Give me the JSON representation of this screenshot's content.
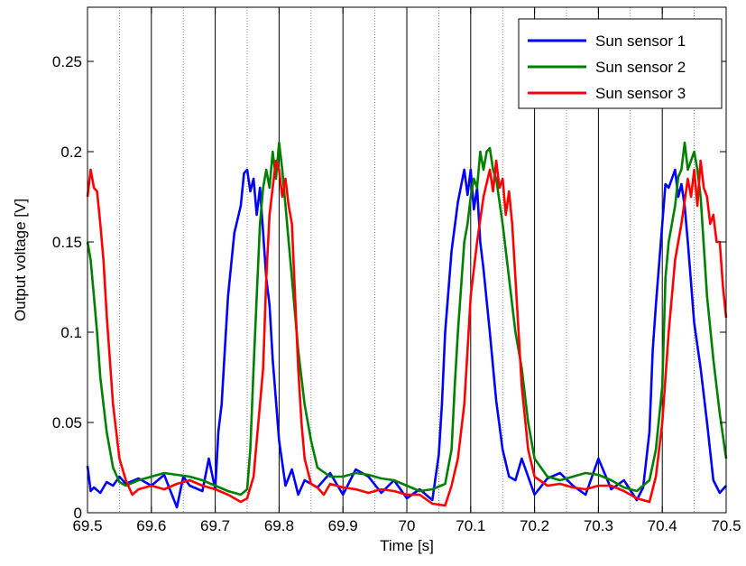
{
  "chart_data": {
    "type": "line",
    "title": "",
    "xlabel": "Time [s]",
    "ylabel": "Output voltage [V]",
    "xlim": [
      69.5,
      70.5
    ],
    "ylim": [
      0,
      0.28
    ],
    "x_ticks": [
      69.5,
      69.6,
      69.7,
      69.8,
      69.9,
      70.0,
      70.1,
      70.2,
      70.3,
      70.4,
      70.5
    ],
    "x_tick_labels": [
      "69.5",
      "69.6",
      "69.7",
      "69.8",
      "69.9",
      "70",
      "70.1",
      "70.2",
      "70.3",
      "70.4",
      "70.5"
    ],
    "y_ticks": [
      0,
      0.05,
      0.1,
      0.15,
      0.2,
      0.25
    ],
    "y_tick_labels": [
      "0",
      "0.05",
      "0.1",
      "0.15",
      "0.2",
      "0.25"
    ],
    "grid": "vertical lines only",
    "legend_position": "top-right",
    "series": [
      {
        "name": "Sun sensor 1",
        "color": "#0000ff",
        "x": [
          69.5,
          69.505,
          69.51,
          69.52,
          69.53,
          69.54,
          69.55,
          69.56,
          69.58,
          69.6,
          69.62,
          69.64,
          69.65,
          69.66,
          69.68,
          69.69,
          69.7,
          69.705,
          69.71,
          69.715,
          69.72,
          69.73,
          69.74,
          69.745,
          69.75,
          69.755,
          69.76,
          69.765,
          69.77,
          69.775,
          69.78,
          69.785,
          69.79,
          69.8,
          69.81,
          69.82,
          69.83,
          69.84,
          69.86,
          69.88,
          69.9,
          69.92,
          69.94,
          69.96,
          69.98,
          70.0,
          70.02,
          70.04,
          70.05,
          70.055,
          70.06,
          70.07,
          70.08,
          70.09,
          70.095,
          70.1,
          70.105,
          70.11,
          70.115,
          70.12,
          70.13,
          70.14,
          70.15,
          70.16,
          70.17,
          70.18,
          70.2,
          70.22,
          70.24,
          70.26,
          70.28,
          70.3,
          70.32,
          70.34,
          70.36,
          70.37,
          70.38,
          70.385,
          70.39,
          70.4,
          70.405,
          70.41,
          70.42,
          70.425,
          70.43,
          70.435,
          70.44,
          70.45,
          70.46,
          70.47,
          70.48,
          70.49,
          70.5
        ],
        "y": [
          0.026,
          0.012,
          0.014,
          0.011,
          0.017,
          0.015,
          0.02,
          0.016,
          0.019,
          0.015,
          0.021,
          0.003,
          0.02,
          0.015,
          0.012,
          0.03,
          0.013,
          0.045,
          0.06,
          0.09,
          0.12,
          0.155,
          0.17,
          0.188,
          0.19,
          0.178,
          0.185,
          0.165,
          0.18,
          0.155,
          0.13,
          0.115,
          0.085,
          0.04,
          0.015,
          0.024,
          0.01,
          0.018,
          0.014,
          0.022,
          0.01,
          0.024,
          0.02,
          0.011,
          0.018,
          0.008,
          0.013,
          0.007,
          0.032,
          0.06,
          0.1,
          0.145,
          0.172,
          0.19,
          0.176,
          0.19,
          0.168,
          0.18,
          0.15,
          0.135,
          0.1,
          0.062,
          0.035,
          0.02,
          0.018,
          0.03,
          0.01,
          0.019,
          0.022,
          0.015,
          0.01,
          0.03,
          0.013,
          0.018,
          0.007,
          0.014,
          0.045,
          0.09,
          0.115,
          0.16,
          0.182,
          0.18,
          0.19,
          0.175,
          0.182,
          0.17,
          0.15,
          0.105,
          0.08,
          0.05,
          0.018,
          0.011,
          0.015
        ]
      },
      {
        "name": "Sun sensor 2",
        "color": "#008000",
        "x": [
          69.5,
          69.505,
          69.51,
          69.515,
          69.52,
          69.53,
          69.54,
          69.55,
          69.56,
          69.58,
          69.6,
          69.62,
          69.64,
          69.66,
          69.68,
          69.7,
          69.72,
          69.74,
          69.75,
          69.755,
          69.76,
          69.765,
          69.77,
          69.775,
          69.78,
          69.785,
          69.79,
          69.795,
          69.8,
          69.805,
          69.81,
          69.82,
          69.83,
          69.84,
          69.85,
          69.86,
          69.88,
          69.9,
          69.92,
          69.94,
          69.96,
          69.98,
          70.0,
          70.02,
          70.04,
          70.06,
          70.07,
          70.075,
          70.08,
          70.09,
          70.095,
          70.1,
          70.105,
          70.11,
          70.115,
          70.12,
          70.125,
          70.13,
          70.135,
          70.14,
          70.15,
          70.16,
          70.17,
          70.18,
          70.19,
          70.2,
          70.22,
          70.24,
          70.26,
          70.28,
          70.3,
          70.32,
          70.34,
          70.36,
          70.38,
          70.39,
          70.4,
          70.405,
          70.41,
          70.42,
          70.425,
          70.43,
          70.435,
          70.44,
          70.445,
          70.45,
          70.455,
          70.46,
          70.47,
          70.48,
          70.49,
          70.5
        ],
        "y": [
          0.15,
          0.14,
          0.12,
          0.1,
          0.075,
          0.045,
          0.025,
          0.017,
          0.015,
          0.018,
          0.02,
          0.022,
          0.021,
          0.02,
          0.018,
          0.015,
          0.012,
          0.01,
          0.013,
          0.035,
          0.08,
          0.12,
          0.16,
          0.18,
          0.19,
          0.18,
          0.2,
          0.185,
          0.205,
          0.19,
          0.17,
          0.13,
          0.09,
          0.06,
          0.04,
          0.025,
          0.02,
          0.02,
          0.022,
          0.021,
          0.019,
          0.018,
          0.015,
          0.012,
          0.013,
          0.016,
          0.035,
          0.07,
          0.1,
          0.15,
          0.16,
          0.175,
          0.185,
          0.18,
          0.2,
          0.19,
          0.2,
          0.202,
          0.19,
          0.185,
          0.16,
          0.13,
          0.1,
          0.08,
          0.05,
          0.03,
          0.02,
          0.018,
          0.02,
          0.022,
          0.021,
          0.018,
          0.014,
          0.012,
          0.018,
          0.035,
          0.07,
          0.13,
          0.15,
          0.17,
          0.186,
          0.19,
          0.205,
          0.19,
          0.195,
          0.2,
          0.19,
          0.175,
          0.12,
          0.085,
          0.055,
          0.03
        ]
      },
      {
        "name": "Sun sensor 3",
        "color": "#ff0000",
        "x": [
          69.5,
          69.505,
          69.51,
          69.515,
          69.52,
          69.525,
          69.53,
          69.54,
          69.55,
          69.56,
          69.57,
          69.58,
          69.6,
          69.62,
          69.64,
          69.66,
          69.68,
          69.7,
          69.72,
          69.74,
          69.75,
          69.76,
          69.77,
          69.775,
          69.78,
          69.785,
          69.79,
          69.795,
          69.8,
          69.805,
          69.81,
          69.815,
          69.82,
          69.825,
          69.83,
          69.835,
          69.84,
          69.85,
          69.86,
          69.87,
          69.88,
          69.9,
          69.92,
          69.94,
          69.96,
          69.98,
          70.0,
          70.02,
          70.04,
          70.06,
          70.07,
          70.08,
          70.09,
          70.095,
          70.1,
          70.11,
          70.12,
          70.13,
          70.135,
          70.14,
          70.145,
          70.15,
          70.155,
          70.16,
          70.165,
          70.17,
          70.175,
          70.18,
          70.19,
          70.2,
          70.22,
          70.24,
          70.26,
          70.28,
          70.3,
          70.32,
          70.34,
          70.36,
          70.38,
          70.39,
          70.4,
          70.41,
          70.42,
          70.43,
          70.44,
          70.445,
          70.45,
          70.455,
          70.46,
          70.465,
          70.47,
          70.475,
          70.48,
          70.485,
          70.49,
          70.495,
          70.5
        ],
        "y": [
          0.175,
          0.19,
          0.18,
          0.178,
          0.16,
          0.14,
          0.11,
          0.06,
          0.03,
          0.018,
          0.01,
          0.013,
          0.015,
          0.013,
          0.016,
          0.018,
          0.015,
          0.013,
          0.01,
          0.006,
          0.008,
          0.02,
          0.06,
          0.08,
          0.13,
          0.165,
          0.18,
          0.195,
          0.19,
          0.175,
          0.185,
          0.17,
          0.16,
          0.12,
          0.08,
          0.05,
          0.03,
          0.016,
          0.014,
          0.01,
          0.016,
          0.014,
          0.013,
          0.011,
          0.013,
          0.012,
          0.01,
          0.01,
          0.005,
          0.004,
          0.015,
          0.03,
          0.06,
          0.09,
          0.12,
          0.15,
          0.175,
          0.19,
          0.178,
          0.195,
          0.18,
          0.185,
          0.165,
          0.178,
          0.16,
          0.13,
          0.1,
          0.07,
          0.035,
          0.02,
          0.015,
          0.016,
          0.014,
          0.013,
          0.015,
          0.015,
          0.012,
          0.008,
          0.006,
          0.02,
          0.05,
          0.1,
          0.14,
          0.16,
          0.185,
          0.175,
          0.19,
          0.17,
          0.195,
          0.18,
          0.175,
          0.16,
          0.165,
          0.15,
          0.15,
          0.125,
          0.108
        ]
      }
    ]
  }
}
